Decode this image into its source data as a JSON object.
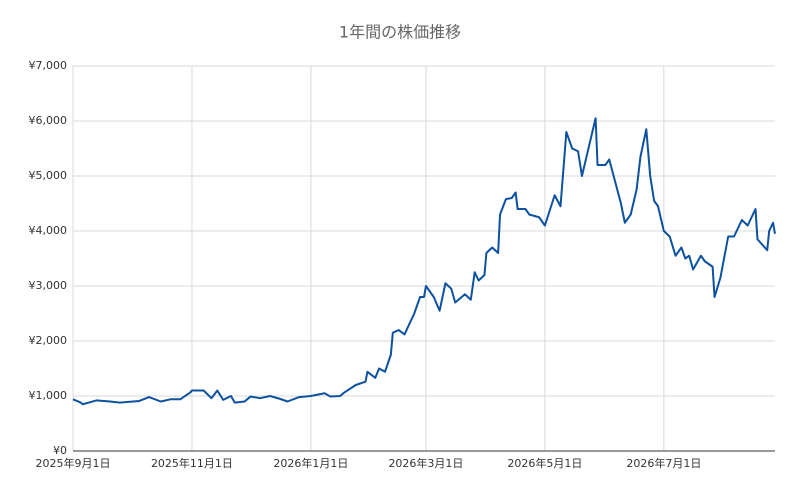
{
  "chart_data": {
    "type": "line",
    "title": "1年間の株価推移",
    "x": [
      "2025-09-01",
      "2025-09-05",
      "2025-09-06",
      "2025-09-10",
      "2025-09-13",
      "2025-09-20",
      "2025-09-25",
      "2025-10-05",
      "2025-10-10",
      "2025-10-16",
      "2025-10-21",
      "2025-10-26",
      "2025-10-31",
      "2025-11-01",
      "2025-11-07",
      "2025-11-11",
      "2025-11-14",
      "2025-11-17",
      "2025-11-21",
      "2025-11-23",
      "2025-11-28",
      "2025-12-01",
      "2025-12-06",
      "2025-12-11",
      "2025-12-16",
      "2025-12-20",
      "2025-12-26",
      "2026-01-01",
      "2026-01-08",
      "2026-01-11",
      "2026-01-16",
      "2026-01-18",
      "2026-01-24",
      "2026-01-29",
      "2026-01-30",
      "2026-02-03",
      "2026-02-05",
      "2026-02-08",
      "2026-02-11",
      "2026-02-12",
      "2026-02-15",
      "2026-02-18",
      "2026-02-23",
      "2026-02-26",
      "2026-02-28",
      "2026-03-01",
      "2026-03-05",
      "2026-03-08",
      "2026-03-11",
      "2026-03-14",
      "2026-03-16",
      "2026-03-21",
      "2026-03-24",
      "2026-03-26",
      "2026-03-28",
      "2026-03-31",
      "2026-04-01",
      "2026-04-04",
      "2026-04-07",
      "2026-04-08",
      "2026-04-11",
      "2026-04-14",
      "2026-04-16",
      "2026-04-17",
      "2026-04-21",
      "2026-04-23",
      "2026-04-28",
      "2026-05-01",
      "2026-05-06",
      "2026-05-09",
      "2026-05-12",
      "2026-05-15",
      "2026-05-18",
      "2026-05-20",
      "2026-05-22",
      "2026-05-27",
      "2026-05-28",
      "2026-06-01",
      "2026-06-03",
      "2026-06-06",
      "2026-06-09",
      "2026-06-11",
      "2026-06-14",
      "2026-06-17",
      "2026-06-19",
      "2026-06-22",
      "2026-06-24",
      "2026-06-26",
      "2026-06-28",
      "2026-07-01",
      "2026-07-04",
      "2026-07-07",
      "2026-07-10",
      "2026-07-12",
      "2026-07-14",
      "2026-07-16",
      "2026-07-20",
      "2026-07-22",
      "2026-07-26",
      "2026-07-27",
      "2026-07-30",
      "2026-08-03",
      "2026-08-06",
      "2026-08-10",
      "2026-08-13",
      "2026-08-17",
      "2026-08-18",
      "2026-08-23",
      "2026-08-24",
      "2026-08-26",
      "2026-08-27"
    ],
    "series": [
      {
        "color": "#0d52a1",
        "values": [
          940,
          880,
          850,
          890,
          920,
          900,
          880,
          910,
          980,
          900,
          940,
          940,
          1060,
          1100,
          1100,
          960,
          1100,
          930,
          1000,
          880,
          900,
          990,
          960,
          1000,
          950,
          900,
          980,
          1000,
          1050,
          990,
          1000,
          1060,
          1200,
          1260,
          1440,
          1330,
          1500,
          1440,
          1750,
          2150,
          2200,
          2120,
          2500,
          2800,
          2800,
          3000,
          2800,
          2550,
          3050,
          2950,
          2700,
          2850,
          2750,
          3250,
          3100,
          3200,
          3600,
          3700,
          3600,
          4300,
          4580,
          4600,
          4700,
          4400,
          4400,
          4300,
          4250,
          4100,
          4650,
          4450,
          5800,
          5500,
          5450,
          5000,
          5300,
          6050,
          5200,
          5200,
          5300,
          4900,
          4500,
          4150,
          4300,
          4750,
          5350,
          5850,
          5000,
          4550,
          4450,
          4000,
          3900,
          3550,
          3700,
          3500,
          3550,
          3300,
          3550,
          3450,
          3350,
          2800,
          3150,
          3900,
          3900,
          4200,
          4100,
          4400,
          3850,
          3650,
          4000,
          4150,
          3950
        ]
      }
    ],
    "xlim": [
      "2025-09-01",
      "2026-08-27"
    ],
    "xticks": [
      {
        "value": "2025-09-01",
        "label": "2025年9月1日"
      },
      {
        "value": "2025-11-01",
        "label": "2025年11月1日"
      },
      {
        "value": "2026-01-01",
        "label": "2026年1月1日"
      },
      {
        "value": "2026-03-01",
        "label": "2026年3月1日"
      },
      {
        "value": "2026-05-01",
        "label": "2026年5月1日"
      },
      {
        "value": "2026-07-01",
        "label": "2026年7月1日"
      }
    ],
    "ylim": [
      0,
      7000
    ],
    "yticks": [
      {
        "value": 0,
        "label": "¥0"
      },
      {
        "value": 1000,
        "label": "¥1,000"
      },
      {
        "value": 2000,
        "label": "¥2,000"
      },
      {
        "value": 3000,
        "label": "¥3,000"
      },
      {
        "value": 4000,
        "label": "¥4,000"
      },
      {
        "value": 5000,
        "label": "¥5,000"
      },
      {
        "value": 6000,
        "label": "¥6,000"
      },
      {
        "value": 7000,
        "label": "¥7,000"
      }
    ],
    "grid": true
  }
}
